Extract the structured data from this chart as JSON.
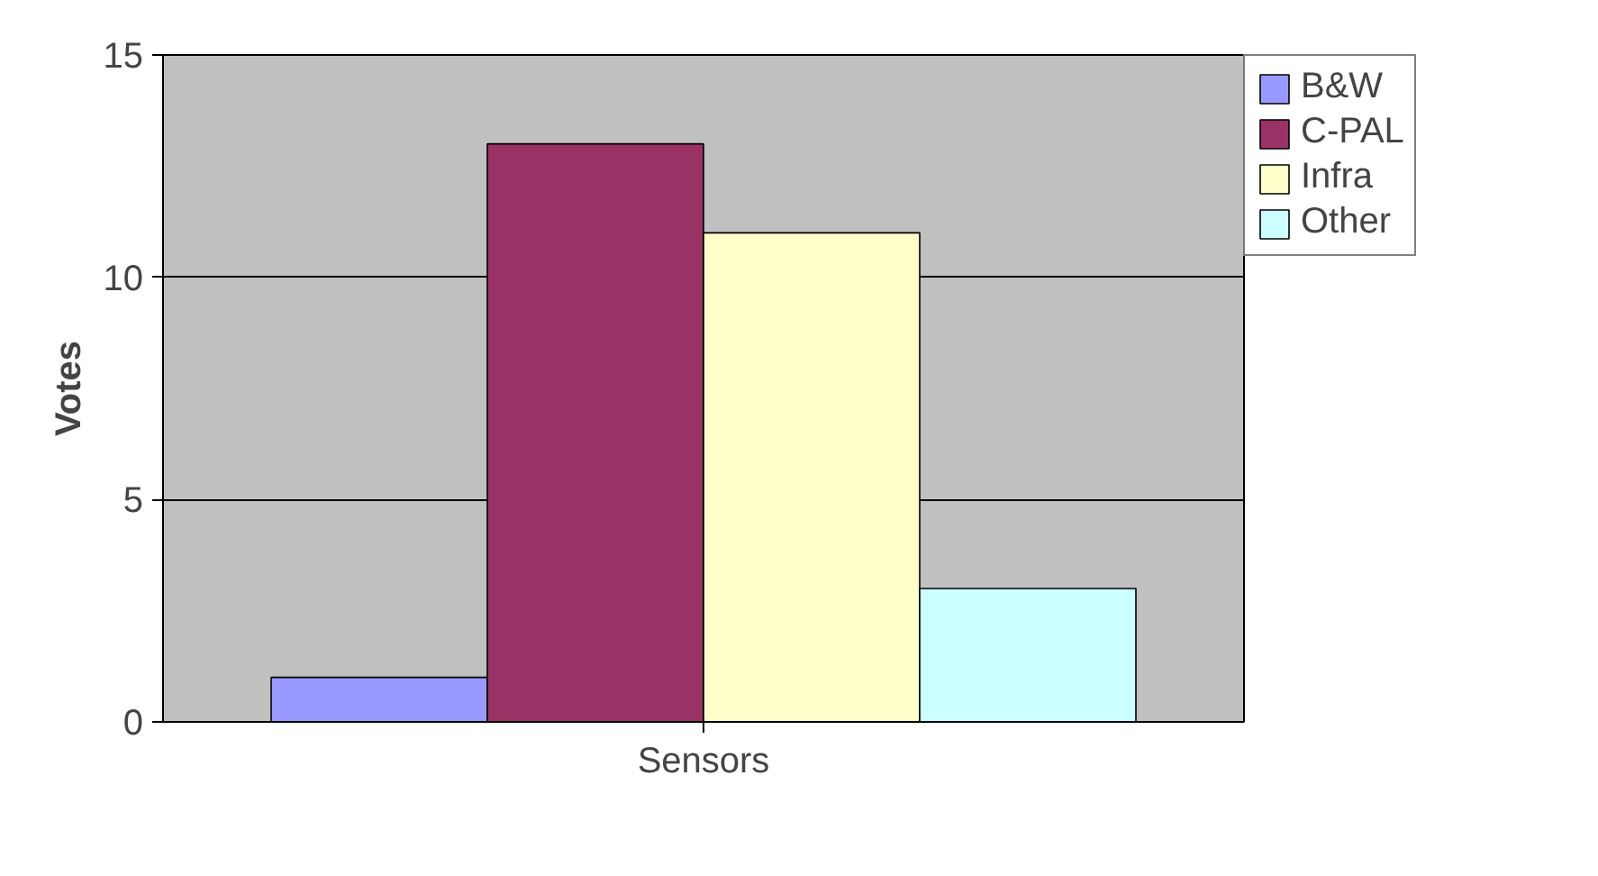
{
  "chart_data": {
    "type": "bar",
    "ylabel": "Votes",
    "categories": [
      "Sensors"
    ],
    "series": [
      {
        "name": "B&W",
        "color": "#9999ff",
        "values": [
          1
        ]
      },
      {
        "name": "C-PAL",
        "color": "#993366",
        "values": [
          13
        ]
      },
      {
        "name": "Infra",
        "color": "#ffffcc",
        "values": [
          11
        ]
      },
      {
        "name": "Other",
        "color": "#ccffff",
        "values": [
          3
        ]
      }
    ],
    "ylim": [
      0,
      15
    ],
    "yticks": [
      0,
      5,
      10,
      15
    ],
    "grid": "y",
    "legend": "right"
  }
}
